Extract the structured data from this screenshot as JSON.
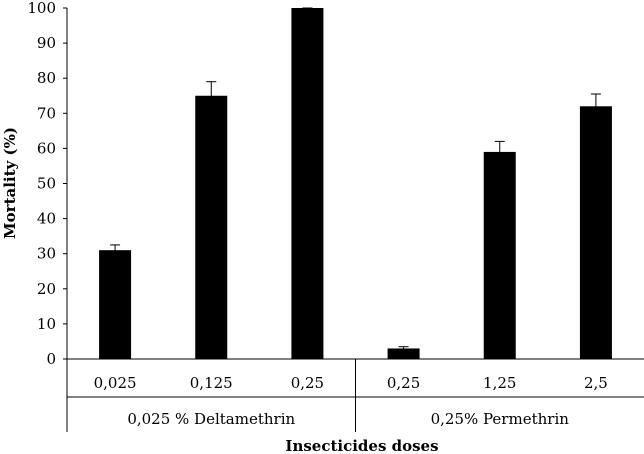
{
  "chart_data": {
    "type": "bar",
    "ylabel": "Mortality (%)",
    "xlabel": "Insecticides doses",
    "ylim": [
      0,
      100
    ],
    "yticks": [
      0,
      10,
      20,
      30,
      40,
      50,
      60,
      70,
      80,
      90,
      100
    ],
    "grid": false,
    "bar_color": "#000000",
    "categories": [
      "0,025",
      "0,125",
      "0,25",
      "0,25",
      "1,25",
      "2,5"
    ],
    "groups": [
      {
        "label": "0,025 % Deltamethrin",
        "categories": [
          0,
          1,
          2
        ]
      },
      {
        "label": "0,25% Permethrin",
        "categories": [
          3,
          4,
          5
        ]
      }
    ],
    "values": [
      31,
      75,
      100,
      3,
      59,
      72
    ],
    "error": [
      1.5,
      4,
      3,
      0.5,
      3,
      3.5
    ]
  }
}
